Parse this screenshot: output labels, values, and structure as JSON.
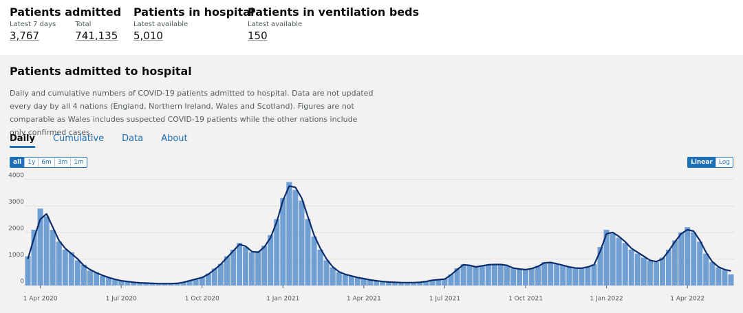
{
  "header": {
    "stats": [
      {
        "title": "Patients admitted",
        "items": [
          {
            "label": "Latest 7 days",
            "value": "3,767"
          },
          {
            "label": "Total",
            "value": "741,135"
          }
        ]
      },
      {
        "title": "Patients in hospital",
        "items": [
          {
            "label": "Latest available",
            "value": "5,010"
          }
        ]
      },
      {
        "title": "Patients in ventilation beds",
        "items": [
          {
            "label": "Latest available",
            "value": "150"
          }
        ]
      }
    ]
  },
  "card": {
    "title": "Patients admitted to hospital",
    "description": "Daily and cumulative numbers of COVID-19 patients admitted to hospital. Data are not updated every day by all 4 nations (England, Northern Ireland, Wales and Scotland). Figures are not comparable as Wales includes suspected COVID-19 patients while the other nations include only confirmed cases.",
    "tabs": [
      "Daily",
      "Cumulative",
      "Data",
      "About"
    ],
    "ranges": [
      "all",
      "1y",
      "6m",
      "3m",
      "1m"
    ],
    "scales": [
      "Linear",
      "Log"
    ]
  },
  "chart_data": {
    "type": "bar",
    "categories": [
      null,
      null,
      "1 Apr 2020",
      null,
      null,
      null,
      null,
      null,
      null,
      null,
      null,
      null,
      null,
      null,
      null,
      "1 Jul 2020",
      null,
      null,
      null,
      null,
      null,
      null,
      null,
      null,
      null,
      null,
      null,
      null,
      "1 Oct 2020",
      null,
      null,
      null,
      null,
      null,
      null,
      null,
      null,
      null,
      null,
      null,
      null,
      "1 Jan 2021",
      null,
      null,
      null,
      null,
      null,
      null,
      null,
      null,
      null,
      null,
      null,
      null,
      "1 Apr 2021",
      null,
      null,
      null,
      null,
      null,
      null,
      null,
      null,
      null,
      null,
      null,
      null,
      "1 Jul 2021",
      null,
      null,
      null,
      null,
      null,
      null,
      null,
      null,
      null,
      null,
      null,
      null,
      "1 Oct 2021",
      null,
      null,
      null,
      null,
      null,
      null,
      null,
      null,
      null,
      null,
      null,
      null,
      "1 Jan 2022",
      null,
      null,
      null,
      null,
      null,
      null,
      null,
      null,
      null,
      null,
      null,
      null,
      "1 Apr 2022",
      null,
      null,
      null,
      null,
      null,
      null,
      null
    ],
    "series": [
      {
        "type": "bar",
        "color": "#6f9fd3",
        "values": [
          1100,
          2100,
          2900,
          2600,
          2100,
          1650,
          1350,
          1250,
          950,
          780,
          560,
          500,
          360,
          310,
          220,
          170,
          140,
          110,
          100,
          85,
          75,
          65,
          70,
          75,
          85,
          130,
          190,
          250,
          320,
          450,
          640,
          820,
          1100,
          1350,
          1600,
          1450,
          1250,
          1300,
          1500,
          1900,
          2500,
          3300,
          3900,
          3600,
          3200,
          2500,
          1850,
          1350,
          950,
          680,
          500,
          400,
          350,
          290,
          250,
          200,
          175,
          145,
          125,
          115,
          105,
          105,
          110,
          125,
          160,
          210,
          230,
          260,
          420,
          650,
          800,
          740,
          690,
          760,
          800,
          780,
          810,
          740,
          650,
          610,
          590,
          650,
          740,
          880,
          850,
          800,
          740,
          690,
          650,
          640,
          710,
          800,
          1450,
          2100,
          1950,
          1800,
          1600,
          1350,
          1200,
          1050,
          930,
          880,
          1050,
          1350,
          1700,
          2000,
          2200,
          2000,
          1650,
          1200,
          880,
          680,
          580,
          420
        ]
      },
      {
        "type": "line",
        "color": "#0b2c6b",
        "values": [
          1000,
          1800,
          2500,
          2700,
          2200,
          1700,
          1400,
          1200,
          1000,
          750,
          600,
          480,
          380,
          300,
          230,
          180,
          150,
          120,
          100,
          90,
          80,
          70,
          70,
          70,
          80,
          120,
          180,
          240,
          300,
          420,
          600,
          800,
          1050,
          1300,
          1550,
          1480,
          1280,
          1250,
          1450,
          1800,
          2400,
          3200,
          3750,
          3700,
          3300,
          2600,
          1900,
          1400,
          1000,
          700,
          520,
          420,
          360,
          300,
          260,
          210,
          180,
          150,
          130,
          120,
          110,
          110,
          110,
          120,
          150,
          200,
          220,
          240,
          400,
          600,
          780,
          760,
          700,
          740,
          780,
          790,
          790,
          760,
          660,
          620,
          600,
          640,
          720,
          850,
          870,
          820,
          760,
          700,
          660,
          650,
          700,
          780,
          1300,
          1950,
          2000,
          1850,
          1650,
          1400,
          1250,
          1100,
          950,
          900,
          1000,
          1300,
          1650,
          1950,
          2100,
          2050,
          1700,
          1250,
          900,
          700,
          600,
          550
        ]
      }
    ],
    "ylim": [
      0,
      4150
    ],
    "yticks": [
      0,
      1000,
      2000,
      3000,
      4000
    ],
    "grid": true
  }
}
